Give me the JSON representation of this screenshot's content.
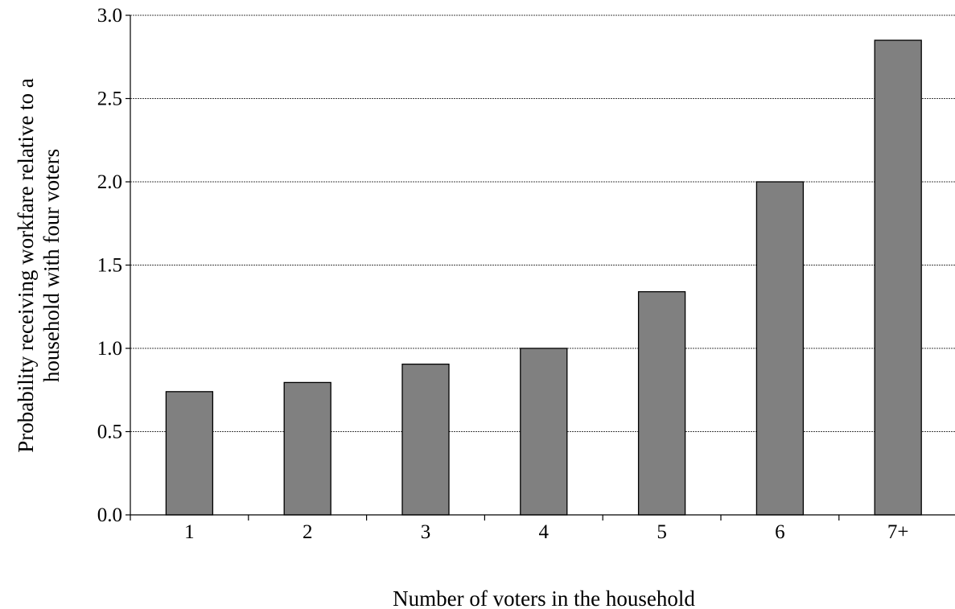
{
  "chart_data": {
    "type": "bar",
    "title": "",
    "categories": [
      "1",
      "2",
      "3",
      "4",
      "5",
      "6",
      "7+"
    ],
    "values": [
      0.74,
      0.795,
      0.905,
      1.0,
      1.34,
      2.0,
      2.85
    ],
    "xlabel": "Number of voters in the household",
    "ylabel_lines": [
      "Probability receiving workfare relative to a",
      "household with four voters"
    ],
    "ylim": [
      0,
      3.0
    ],
    "yticks": [
      "0.0",
      "0.5",
      "1.0",
      "1.5",
      "2.0",
      "2.5",
      "3.0"
    ],
    "grid": "horizontal dotted",
    "legend": "none",
    "bar_color": "#808080",
    "bar_edge_color": "#000000"
  }
}
